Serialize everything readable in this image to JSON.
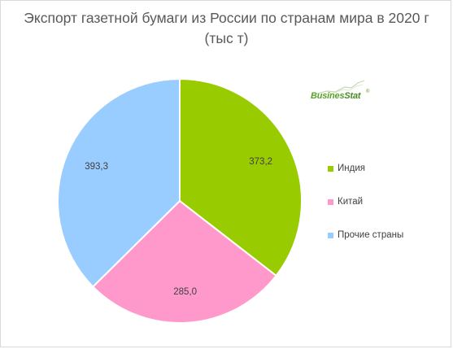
{
  "title_line1": "Экспорт газетной бумаги из России по странам мира в 2020 г",
  "title_line2": "(тыс т)",
  "logo": {
    "brand_part1": "Busines",
    "brand_part2": "Stat",
    "reg_mark": "®",
    "icon": "rising-line-chart-logo"
  },
  "chart_data": {
    "type": "pie",
    "title": "Экспорт газетной бумаги из России по странам мира в 2020 г (тыс т)",
    "categories": [
      "Индия",
      "Китай",
      "Прочие страны"
    ],
    "values": [
      373.2,
      285.0,
      393.3
    ],
    "value_labels": [
      "373,2",
      "285,0",
      "393,3"
    ],
    "colors": [
      "#99cc00",
      "#ff99cc",
      "#99ccff"
    ],
    "start": "top, clockwise",
    "legend_position": "right"
  }
}
